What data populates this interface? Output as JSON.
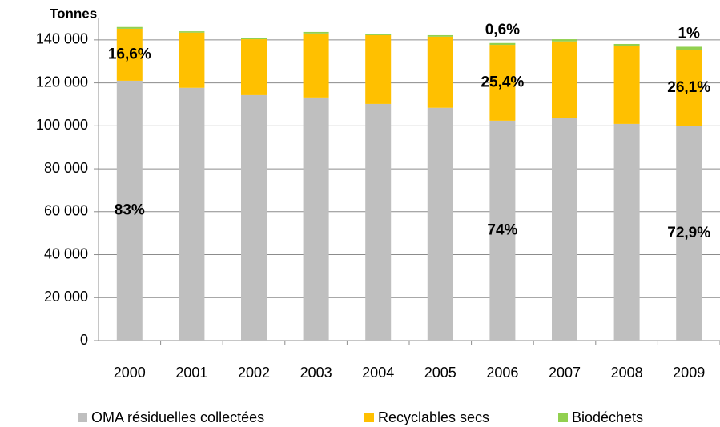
{
  "chart_data": {
    "type": "stacked_bar",
    "y_label": "Tonnes",
    "categories": [
      "2000",
      "2001",
      "2002",
      "2003",
      "2004",
      "2005",
      "2006",
      "2007",
      "2008",
      "2009"
    ],
    "series": [
      {
        "name": "OMA résiduelles collectées",
        "color": "#bfbfbf",
        "values": [
          121000,
          117700,
          114300,
          113200,
          110200,
          108400,
          102400,
          103500,
          100900,
          99800
        ],
        "shares": [
          83,
          null,
          null,
          null,
          null,
          null,
          74,
          null,
          null,
          72.9
        ],
        "share_labels": [
          "83%",
          null,
          null,
          null,
          null,
          null,
          "74%",
          null,
          null,
          "72,9%"
        ]
      },
      {
        "name": "Recyclables secs",
        "color": "#ffc000",
        "values": [
          24200,
          25700,
          26000,
          29800,
          32000,
          33100,
          35300,
          35800,
          36200,
          35600
        ],
        "shares": [
          16.6,
          null,
          null,
          null,
          null,
          null,
          25.4,
          null,
          null,
          26.1
        ],
        "share_labels": [
          "16,6%",
          null,
          null,
          null,
          null,
          null,
          "25,4%",
          null,
          null,
          "26,1%"
        ]
      },
      {
        "name": "Biodéchets",
        "color": "#92d050",
        "values": [
          800,
          600,
          600,
          700,
          500,
          700,
          850,
          1000,
          1000,
          1400
        ],
        "shares": [
          null,
          null,
          null,
          null,
          null,
          null,
          0.6,
          null,
          null,
          1
        ],
        "share_labels": [
          null,
          null,
          null,
          null,
          null,
          null,
          "0,6%",
          null,
          null,
          "1%"
        ]
      }
    ],
    "ylim": [
      0,
      150000
    ],
    "yticks": [
      0,
      {
        "value": 20000,
        "label": "20 000"
      },
      {
        "value": 40000,
        "label": "40 000"
      },
      {
        "value": 60000,
        "label": "60 000"
      },
      {
        "value": 80000,
        "label": "80 000"
      },
      {
        "value": 100000,
        "label": "100 000"
      },
      {
        "value": 120000,
        "label": "120 000"
      },
      {
        "value": 140000,
        "label": "140 000"
      }
    ],
    "grid": true
  }
}
